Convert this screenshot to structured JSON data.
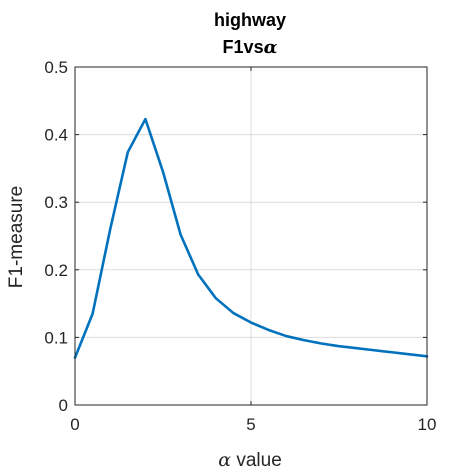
{
  "chart_data": {
    "type": "line",
    "title": "highway",
    "subtitle": "F1vsα",
    "xlabel": "α value",
    "ylabel": "F1-measure",
    "xlim": [
      0,
      10
    ],
    "ylim": [
      0,
      0.5
    ],
    "xticks": [
      0,
      5,
      10
    ],
    "yticks": [
      0,
      0.1,
      0.2,
      0.3,
      0.4,
      0.5
    ],
    "xtick_labels": [
      "0",
      "5",
      "10"
    ],
    "ytick_labels": [
      "0",
      "0.1",
      "0.2",
      "0.3",
      "0.4",
      "0.5"
    ],
    "grid": true,
    "series": [
      {
        "color": "#0072bd",
        "x": [
          0,
          0.5,
          1,
          1.5,
          2,
          2.5,
          3,
          3.5,
          4,
          4.5,
          5,
          5.5,
          6,
          6.5,
          7,
          7.5,
          8,
          8.5,
          9,
          9.5,
          10
        ],
        "y": [
          0.07,
          0.135,
          0.26,
          0.374,
          0.423,
          0.345,
          0.252,
          0.193,
          0.158,
          0.136,
          0.122,
          0.111,
          0.102,
          0.096,
          0.091,
          0.087,
          0.084,
          0.081,
          0.078,
          0.075,
          0.072
        ]
      }
    ]
  }
}
